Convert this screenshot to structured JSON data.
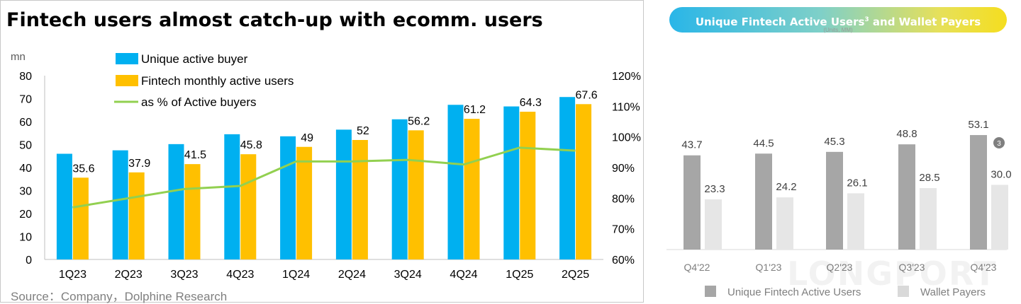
{
  "left": {
    "title": "Fintech users almost catch-up with ecomm. users",
    "source": "Source：Company，Dolphine Research"
  },
  "right": {
    "title_main": "Unique Fintech Active Users",
    "title_sup": "3",
    "title_tail": " and Wallet Payers",
    "subtitle": "(Units, MM)"
  },
  "watermark": "LONGPORT",
  "chart_data": [
    {
      "type": "bar",
      "title": "Fintech users almost catch-up with ecomm. users",
      "ylabel": "mn",
      "categories": [
        "1Q23",
        "2Q23",
        "3Q23",
        "4Q23",
        "1Q24",
        "2Q24",
        "3Q24",
        "4Q24",
        "1Q25",
        "2Q25"
      ],
      "ylim": [
        0,
        80
      ],
      "yticks": [
        0,
        10,
        20,
        30,
        40,
        50,
        60,
        70,
        80
      ],
      "y2lim": [
        0.6,
        1.2
      ],
      "y2ticks": [
        "60%",
        "70%",
        "80%",
        "90%",
        "100%",
        "110%",
        "120%"
      ],
      "legend_position": "top-left",
      "grid": false,
      "series": [
        {
          "name": "Unique active buyer",
          "type": "bar",
          "color": "#00b0f0",
          "values": [
            46.0,
            47.5,
            50.2,
            54.5,
            53.6,
            56.5,
            61.0,
            67.3,
            66.6,
            70.7
          ]
        },
        {
          "name": "Fintech monthly active users",
          "type": "bar",
          "color": "#ffc000",
          "values": [
            35.6,
            37.9,
            41.5,
            45.8,
            49,
            52,
            56.2,
            61.2,
            64.3,
            67.6
          ],
          "labels": [
            "35.6",
            "37.9",
            "41.5",
            "45.8",
            "49",
            "52",
            "56.2",
            "61.2",
            "64.3",
            "67.6"
          ]
        },
        {
          "name": "as % of Active buyers",
          "type": "line",
          "axis": "right",
          "color": "#92d050",
          "values": [
            0.77,
            0.8,
            0.83,
            0.84,
            0.92,
            0.92,
            0.925,
            0.91,
            0.965,
            0.955
          ]
        }
      ]
    },
    {
      "type": "bar",
      "title": "Unique Fintech Active Users and Wallet Payers",
      "ylabel": "(Units, MM)",
      "categories": [
        "Q4'22",
        "Q1'23",
        "Q2'23",
        "Q3'23",
        "Q4'23"
      ],
      "grid": false,
      "legend_position": "bottom",
      "series": [
        {
          "name": "Unique Fintech Active Users",
          "color": "#a6a6a6",
          "values": [
            43.7,
            44.5,
            45.3,
            48.8,
            53.1
          ],
          "labels": [
            "43.7",
            "44.5",
            "45.3",
            "48.8",
            "53.1"
          ]
        },
        {
          "name": "Wallet Payers",
          "color": "#e6e6e6",
          "values": [
            23.3,
            24.2,
            26.1,
            28.5,
            30.0
          ],
          "labels": [
            "23.3",
            "24.2",
            "26.1",
            "28.5",
            "30.0"
          ]
        }
      ],
      "annotation": {
        "text": "3",
        "category": "Q4'23"
      }
    }
  ]
}
